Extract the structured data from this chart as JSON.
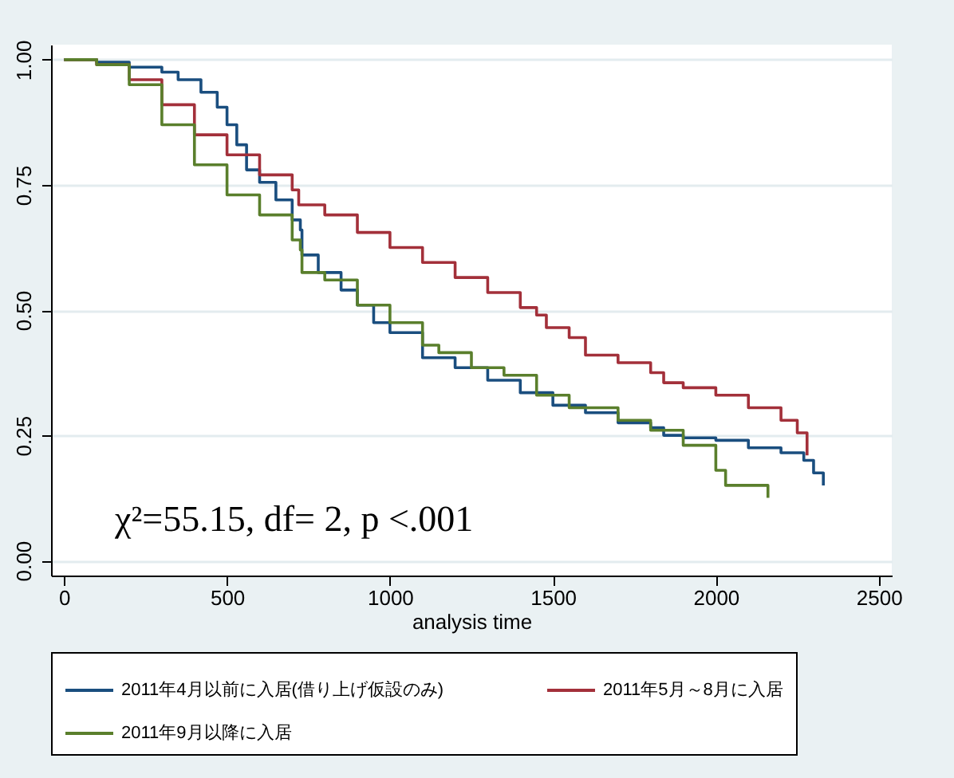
{
  "chart_data": {
    "type": "step",
    "xlabel": "analysis time",
    "annotations": [
      "χ²=55.15, df= 2, p <.001"
    ],
    "xlim": [
      -40,
      2540
    ],
    "xticks": [
      0,
      500,
      1000,
      1500,
      2000,
      2500
    ],
    "ylim": [
      -0.03,
      1.03
    ],
    "yticks": [
      {
        "value": 0,
        "label": "0.00"
      },
      {
        "value": 0.25,
        "label": "0.25"
      },
      {
        "value": 0.5,
        "label": "0.50"
      },
      {
        "value": 0.75,
        "label": "0.75"
      },
      {
        "value": 1,
        "label": "1.00"
      }
    ],
    "grid": "y",
    "legend": "bottom",
    "series": [
      {
        "name": "2011年4月以前に入居(借り上げ仮設のみ)",
        "color": "#1a4e7f",
        "x": [
          0,
          100,
          200,
          300,
          350,
          420,
          470,
          500,
          530,
          560,
          600,
          650,
          700,
          725,
          730,
          780,
          850,
          900,
          950,
          1000,
          1100,
          1200,
          1300,
          1400,
          1500,
          1600,
          1700,
          1800,
          1840,
          1900,
          2000,
          2100,
          2200,
          2270,
          2300,
          2330
        ],
        "values": [
          1.0,
          0.995,
          0.985,
          0.975,
          0.96,
          0.935,
          0.905,
          0.87,
          0.83,
          0.78,
          0.755,
          0.72,
          0.68,
          0.66,
          0.61,
          0.575,
          0.54,
          0.51,
          0.475,
          0.455,
          0.405,
          0.385,
          0.36,
          0.335,
          0.31,
          0.295,
          0.275,
          0.265,
          0.25,
          0.245,
          0.24,
          0.225,
          0.215,
          0.2,
          0.175,
          0.15
        ]
      },
      {
        "name": "2011年5月～8月に入居",
        "color": "#a3303a",
        "x": [
          0,
          100,
          200,
          300,
          400,
          500,
          600,
          700,
          720,
          800,
          900,
          1000,
          1100,
          1200,
          1300,
          1400,
          1450,
          1480,
          1550,
          1600,
          1700,
          1800,
          1840,
          1900,
          2000,
          2100,
          2200,
          2250,
          2280
        ],
        "values": [
          1.0,
          0.99,
          0.96,
          0.91,
          0.85,
          0.81,
          0.77,
          0.74,
          0.71,
          0.69,
          0.655,
          0.625,
          0.595,
          0.565,
          0.535,
          0.505,
          0.49,
          0.465,
          0.445,
          0.41,
          0.395,
          0.375,
          0.355,
          0.345,
          0.33,
          0.305,
          0.28,
          0.255,
          0.21
        ]
      },
      {
        "name": "2011年9月以降に入居",
        "color": "#5a7f2c",
        "x": [
          0,
          100,
          200,
          300,
          400,
          500,
          600,
          700,
          725,
          730,
          800,
          900,
          1000,
          1100,
          1150,
          1250,
          1350,
          1450,
          1550,
          1700,
          1800,
          1900,
          2000,
          2030,
          2150,
          2160
        ],
        "values": [
          1.0,
          0.99,
          0.95,
          0.87,
          0.79,
          0.73,
          0.69,
          0.64,
          0.62,
          0.575,
          0.56,
          0.51,
          0.475,
          0.43,
          0.415,
          0.385,
          0.37,
          0.33,
          0.305,
          0.28,
          0.26,
          0.23,
          0.18,
          0.15,
          0.15,
          0.125
        ]
      }
    ]
  }
}
